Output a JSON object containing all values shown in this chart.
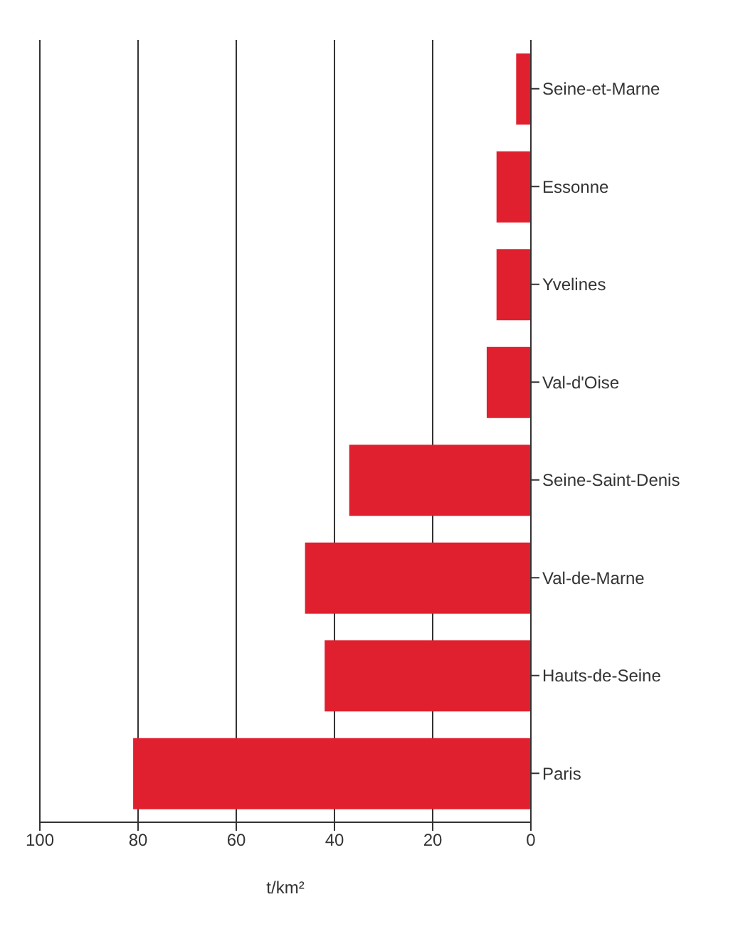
{
  "chart_data": {
    "type": "bar",
    "orientation": "horizontal",
    "xlabel": "t/km²",
    "categories": [
      "Seine-et-Marne",
      "Essonne",
      "Yvelines",
      "Val-d'Oise",
      "Seine-Saint-Denis",
      "Val-de-Marne",
      "Hauts-de-Seine",
      "Paris"
    ],
    "values": [
      3,
      7,
      7,
      9,
      37,
      46,
      42,
      81
    ],
    "color": "#e0202e",
    "xlim": [
      100,
      0
    ],
    "xticks": [
      0,
      20,
      40,
      60,
      80,
      100
    ],
    "grid": "x"
  }
}
